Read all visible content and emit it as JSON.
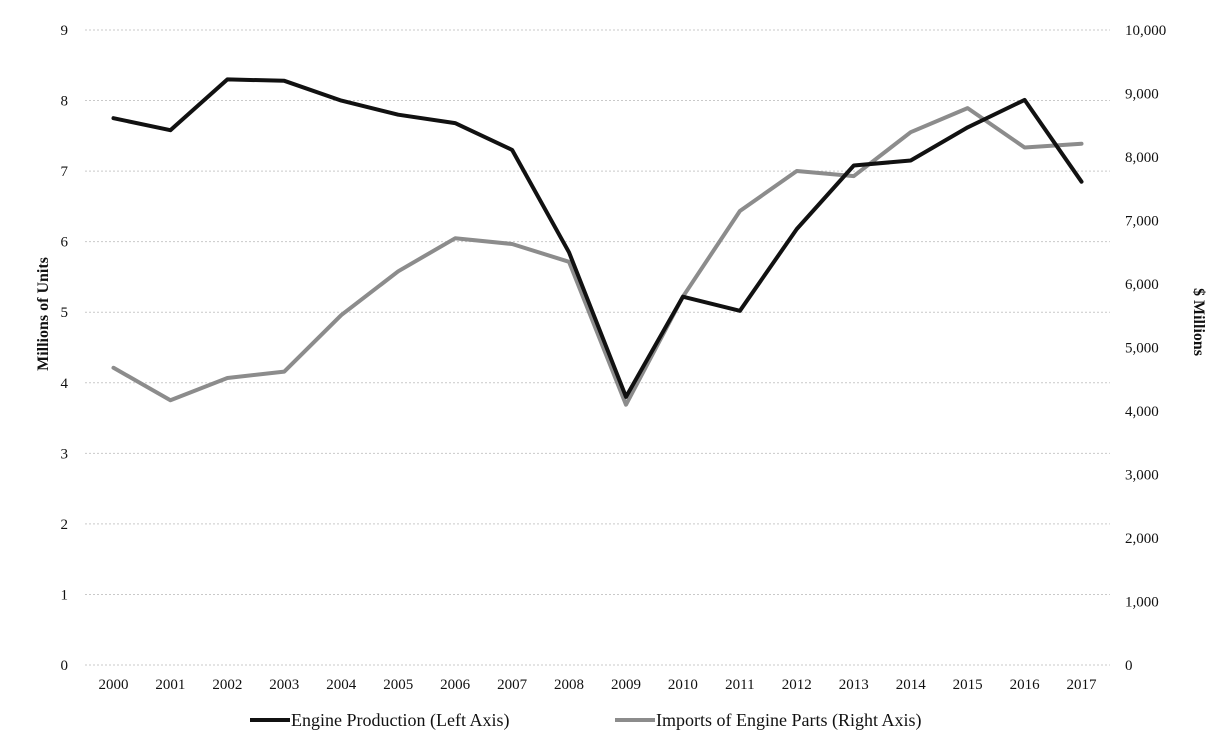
{
  "chart_data": {
    "type": "line",
    "title": "",
    "x": [
      "2000",
      "2001",
      "2002",
      "2003",
      "2004",
      "2005",
      "2006",
      "2007",
      "2008",
      "2009",
      "2010",
      "2011",
      "2012",
      "2013",
      "2014",
      "2015",
      "2016",
      "2017"
    ],
    "y_left": {
      "label": "Millions of Units",
      "lim": [
        0,
        9
      ],
      "ticks": [
        "0",
        "1",
        "2",
        "3",
        "4",
        "5",
        "6",
        "7",
        "8",
        "9"
      ]
    },
    "y_right": {
      "label": "$ Millions",
      "lim": [
        0,
        10000
      ],
      "ticks": [
        "0",
        "1,000",
        "2,000",
        "3,000",
        "4,000",
        "5,000",
        "6,000",
        "7,000",
        "8,000",
        "9,000",
        "10,000"
      ]
    },
    "grid": "horizontal",
    "legend_position": "bottom",
    "series": [
      {
        "name": "Engine Production (Left Axis)",
        "axis": "left",
        "color": "#111111",
        "values": [
          7.75,
          7.58,
          8.3,
          8.28,
          8.0,
          7.8,
          7.68,
          7.3,
          5.85,
          3.8,
          5.22,
          5.02,
          6.18,
          7.08,
          7.15,
          7.62,
          8.01,
          6.85
        ]
      },
      {
        "name": "Imports of Engine Parts (Right Axis)",
        "axis": "right",
        "color": "#8c8c8c",
        "values": [
          4680,
          4170,
          4520,
          4620,
          5510,
          6200,
          6720,
          6630,
          6350,
          4100,
          5800,
          7150,
          7780,
          7700,
          8390,
          8770,
          8150,
          8210
        ]
      }
    ]
  }
}
